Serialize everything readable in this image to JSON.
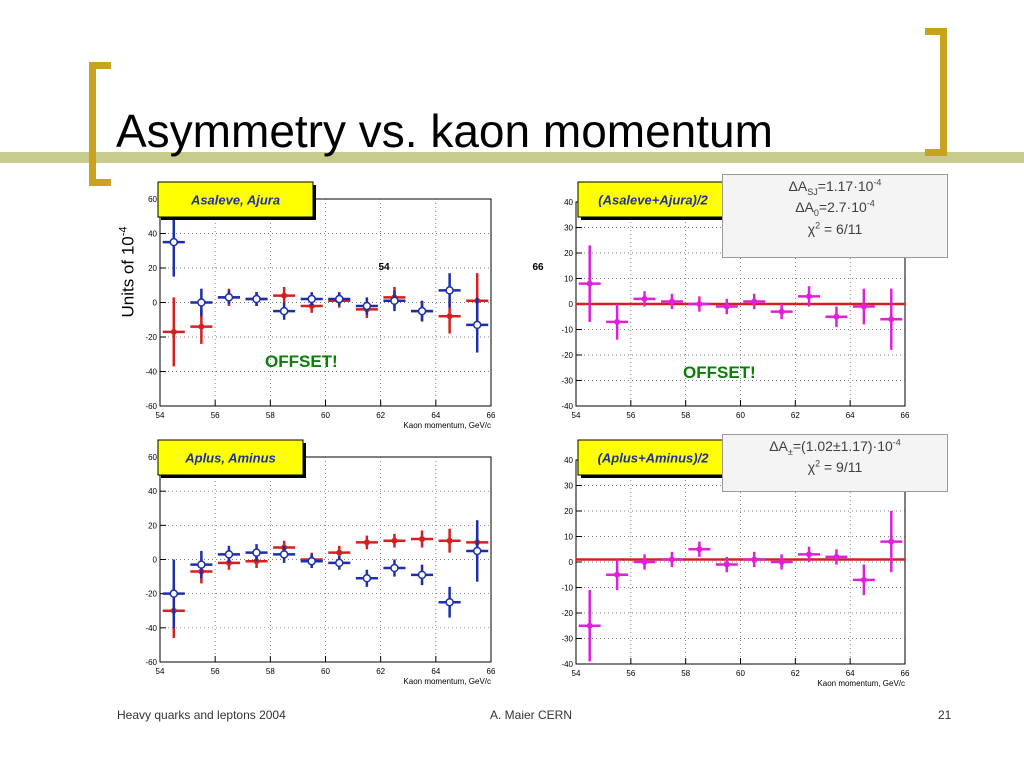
{
  "slide": {
    "title": "Asymmetry vs. kaon momentum",
    "units_label": "Units of 10",
    "units_exp": "-4",
    "footer_left": "Heavy quarks and leptons 2004",
    "footer_center": "A. Maier CERN",
    "footer_right": "21",
    "offset_label": "OFFSET!",
    "accent_color": "#c9a31e",
    "line_color": "#c7cc8e"
  },
  "info_boxes": [
    {
      "line1_a": "ΔA",
      "line1_sub": "SJ",
      "line1_b": "=1.17·10",
      "line1_sup": "-4",
      "line2_a": "ΔA",
      "line2_sub": "0",
      "line2_b": "=2.7·10",
      "line2_sup": "-4",
      "line3_a": "χ",
      "line3_sup": "2",
      "line3_b": " = 6/11"
    },
    {
      "line1_a": "ΔA",
      "line1_sub": "±",
      "line1_b": "=(1.02±1.17)·10",
      "line1_sup": "-4",
      "line2_a": "χ",
      "line2_sup": "2",
      "line2_b": " = 9/11"
    }
  ],
  "chart_data": [
    {
      "type": "scatter",
      "title": "Asaleve, Ajura",
      "xlabel": "Kaon momentum, GeV/c",
      "ylabel": "",
      "xlim": [
        54,
        66
      ],
      "ylim": [
        -60,
        60
      ],
      "xticks": [
        54,
        56,
        58,
        60,
        62,
        64,
        66
      ],
      "yticks": [
        -60,
        -40,
        -20,
        0,
        20,
        40,
        60
      ],
      "annotations": [
        "54",
        "66"
      ],
      "grid": true,
      "series": [
        {
          "color": "#d42020",
          "marker": "filled",
          "points": [
            {
              "x": 54.5,
              "y": -17,
              "xerr": 0.5,
              "yerr": 20
            },
            {
              "x": 55.5,
              "y": -14,
              "xerr": 0.5,
              "yerr": 10
            },
            {
              "x": 56.5,
              "y": 3,
              "xerr": 0.5,
              "yerr": 5
            },
            {
              "x": 57.5,
              "y": 2,
              "xerr": 0.5,
              "yerr": 4
            },
            {
              "x": 58.5,
              "y": 4,
              "xerr": 0.5,
              "yerr": 5
            },
            {
              "x": 59.5,
              "y": -2,
              "xerr": 0.5,
              "yerr": 4
            },
            {
              "x": 60.5,
              "y": 1,
              "xerr": 0.5,
              "yerr": 4
            },
            {
              "x": 61.5,
              "y": -4,
              "xerr": 0.5,
              "yerr": 5
            },
            {
              "x": 62.5,
              "y": 3,
              "xerr": 0.5,
              "yerr": 6
            },
            {
              "x": 63.5,
              "y": -5,
              "xerr": 0.5,
              "yerr": 6
            },
            {
              "x": 64.5,
              "y": -8,
              "xerr": 0.5,
              "yerr": 10
            },
            {
              "x": 65.5,
              "y": 1,
              "xerr": 0.5,
              "yerr": 16
            }
          ]
        },
        {
          "color": "#1c2fa8",
          "marker": "open",
          "points": [
            {
              "x": 54.5,
              "y": 35,
              "xerr": 0.5,
              "yerr": 20
            },
            {
              "x": 55.5,
              "y": 0,
              "xerr": 0.5,
              "yerr": 8
            },
            {
              "x": 56.5,
              "y": 3,
              "xerr": 0.5,
              "yerr": 4
            },
            {
              "x": 57.5,
              "y": 2,
              "xerr": 0.5,
              "yerr": 4
            },
            {
              "x": 58.5,
              "y": -5,
              "xerr": 0.5,
              "yerr": 5
            },
            {
              "x": 59.5,
              "y": 2,
              "xerr": 0.5,
              "yerr": 4
            },
            {
              "x": 60.5,
              "y": 2,
              "xerr": 0.5,
              "yerr": 4
            },
            {
              "x": 61.5,
              "y": -2,
              "xerr": 0.5,
              "yerr": 5
            },
            {
              "x": 62.5,
              "y": 1,
              "xerr": 0.5,
              "yerr": 6
            },
            {
              "x": 63.5,
              "y": -5,
              "xerr": 0.5,
              "yerr": 6
            },
            {
              "x": 64.5,
              "y": 7,
              "xerr": 0.5,
              "yerr": 10
            },
            {
              "x": 65.5,
              "y": -13,
              "xerr": 0.5,
              "yerr": 16
            }
          ]
        }
      ]
    },
    {
      "type": "scatter",
      "title": "(Asaleve+Ajura)/2",
      "xlabel": "Kaon momentum, GeV/c",
      "ylabel": "",
      "xlim": [
        54,
        66
      ],
      "ylim": [
        -40,
        40
      ],
      "xticks": [
        54,
        56,
        58,
        60,
        62,
        64,
        66
      ],
      "yticks": [
        -40,
        -30,
        -20,
        -10,
        0,
        10,
        20,
        30,
        40
      ],
      "grid": true,
      "hline": {
        "y": 0,
        "color": "#d42020"
      },
      "series": [
        {
          "color": "#e020d8",
          "marker": "filled",
          "points": [
            {
              "x": 54.5,
              "y": 8,
              "xerr": 0.5,
              "yerr": 15
            },
            {
              "x": 55.5,
              "y": -7,
              "xerr": 0.5,
              "yerr": 7
            },
            {
              "x": 56.5,
              "y": 2,
              "xerr": 0.5,
              "yerr": 3
            },
            {
              "x": 57.5,
              "y": 1,
              "xerr": 0.5,
              "yerr": 3
            },
            {
              "x": 58.5,
              "y": 0,
              "xerr": 0.5,
              "yerr": 3
            },
            {
              "x": 59.5,
              "y": -1,
              "xerr": 0.5,
              "yerr": 3
            },
            {
              "x": 60.5,
              "y": 1,
              "xerr": 0.5,
              "yerr": 3
            },
            {
              "x": 61.5,
              "y": -3,
              "xerr": 0.5,
              "yerr": 3
            },
            {
              "x": 62.5,
              "y": 3,
              "xerr": 0.5,
              "yerr": 4
            },
            {
              "x": 63.5,
              "y": -5,
              "xerr": 0.5,
              "yerr": 4
            },
            {
              "x": 64.5,
              "y": -1,
              "xerr": 0.5,
              "yerr": 7
            },
            {
              "x": 65.5,
              "y": -6,
              "xerr": 0.5,
              "yerr": 12
            }
          ]
        }
      ]
    },
    {
      "type": "scatter",
      "title": "Aplus, Aminus",
      "xlabel": "Kaon momentum, GeV/c",
      "ylabel": "",
      "xlim": [
        54,
        66
      ],
      "ylim": [
        -60,
        60
      ],
      "xticks": [
        54,
        56,
        58,
        60,
        62,
        64,
        66
      ],
      "yticks": [
        -60,
        -40,
        -20,
        0,
        20,
        40,
        60
      ],
      "grid": true,
      "series": [
        {
          "color": "#d42020",
          "marker": "filled",
          "points": [
            {
              "x": 54.5,
              "y": -30,
              "xerr": 0.5,
              "yerr": 16
            },
            {
              "x": 55.5,
              "y": -7,
              "xerr": 0.5,
              "yerr": 7
            },
            {
              "x": 56.5,
              "y": -2,
              "xerr": 0.5,
              "yerr": 4
            },
            {
              "x": 57.5,
              "y": -1,
              "xerr": 0.5,
              "yerr": 4
            },
            {
              "x": 58.5,
              "y": 7,
              "xerr": 0.5,
              "yerr": 4
            },
            {
              "x": 59.5,
              "y": 0,
              "xerr": 0.5,
              "yerr": 4
            },
            {
              "x": 60.5,
              "y": 4,
              "xerr": 0.5,
              "yerr": 4
            },
            {
              "x": 61.5,
              "y": 10,
              "xerr": 0.5,
              "yerr": 4
            },
            {
              "x": 62.5,
              "y": 11,
              "xerr": 0.5,
              "yerr": 4
            },
            {
              "x": 63.5,
              "y": 12,
              "xerr": 0.5,
              "yerr": 5
            },
            {
              "x": 64.5,
              "y": 11,
              "xerr": 0.5,
              "yerr": 7
            },
            {
              "x": 65.5,
              "y": 10,
              "xerr": 0.5,
              "yerr": 10
            }
          ]
        },
        {
          "color": "#1c2fa8",
          "marker": "open",
          "points": [
            {
              "x": 54.5,
              "y": -20,
              "xerr": 0.5,
              "yerr": 20
            },
            {
              "x": 55.5,
              "y": -3,
              "xerr": 0.5,
              "yerr": 8
            },
            {
              "x": 56.5,
              "y": 3,
              "xerr": 0.5,
              "yerr": 5
            },
            {
              "x": 57.5,
              "y": 4,
              "xerr": 0.5,
              "yerr": 5
            },
            {
              "x": 58.5,
              "y": 3,
              "xerr": 0.5,
              "yerr": 5
            },
            {
              "x": 59.5,
              "y": -1,
              "xerr": 0.5,
              "yerr": 4
            },
            {
              "x": 60.5,
              "y": -2,
              "xerr": 0.5,
              "yerr": 4
            },
            {
              "x": 61.5,
              "y": -11,
              "xerr": 0.5,
              "yerr": 5
            },
            {
              "x": 62.5,
              "y": -5,
              "xerr": 0.5,
              "yerr": 5
            },
            {
              "x": 63.5,
              "y": -9,
              "xerr": 0.5,
              "yerr": 6
            },
            {
              "x": 64.5,
              "y": -25,
              "xerr": 0.5,
              "yerr": 9
            },
            {
              "x": 65.5,
              "y": 5,
              "xerr": 0.5,
              "yerr": 18
            }
          ]
        }
      ]
    },
    {
      "type": "scatter",
      "title": "(Aplus+Aminus)/2",
      "xlabel": "Kaon momentum, GeV/c",
      "ylabel": "",
      "xlim": [
        54,
        66
      ],
      "ylim": [
        -40,
        40
      ],
      "xticks": [
        54,
        56,
        58,
        60,
        62,
        64,
        66
      ],
      "yticks": [
        -40,
        -30,
        -20,
        -10,
        0,
        10,
        20,
        30,
        40
      ],
      "grid": true,
      "hline": {
        "y": 1,
        "color": "#d42020"
      },
      "series": [
        {
          "color": "#e020d8",
          "marker": "filled",
          "points": [
            {
              "x": 54.5,
              "y": -25,
              "xerr": 0.5,
              "yerr": 14
            },
            {
              "x": 55.5,
              "y": -5,
              "xerr": 0.5,
              "yerr": 6
            },
            {
              "x": 56.5,
              "y": 0,
              "xerr": 0.5,
              "yerr": 3
            },
            {
              "x": 57.5,
              "y": 1,
              "xerr": 0.5,
              "yerr": 3
            },
            {
              "x": 58.5,
              "y": 5,
              "xerr": 0.5,
              "yerr": 3
            },
            {
              "x": 59.5,
              "y": -1,
              "xerr": 0.5,
              "yerr": 3
            },
            {
              "x": 60.5,
              "y": 1,
              "xerr": 0.5,
              "yerr": 3
            },
            {
              "x": 61.5,
              "y": 0,
              "xerr": 0.5,
              "yerr": 3
            },
            {
              "x": 62.5,
              "y": 3,
              "xerr": 0.5,
              "yerr": 3
            },
            {
              "x": 63.5,
              "y": 2,
              "xerr": 0.5,
              "yerr": 3
            },
            {
              "x": 64.5,
              "y": -7,
              "xerr": 0.5,
              "yerr": 6
            },
            {
              "x": 65.5,
              "y": 8,
              "xerr": 0.5,
              "yerr": 12
            }
          ]
        }
      ]
    }
  ]
}
